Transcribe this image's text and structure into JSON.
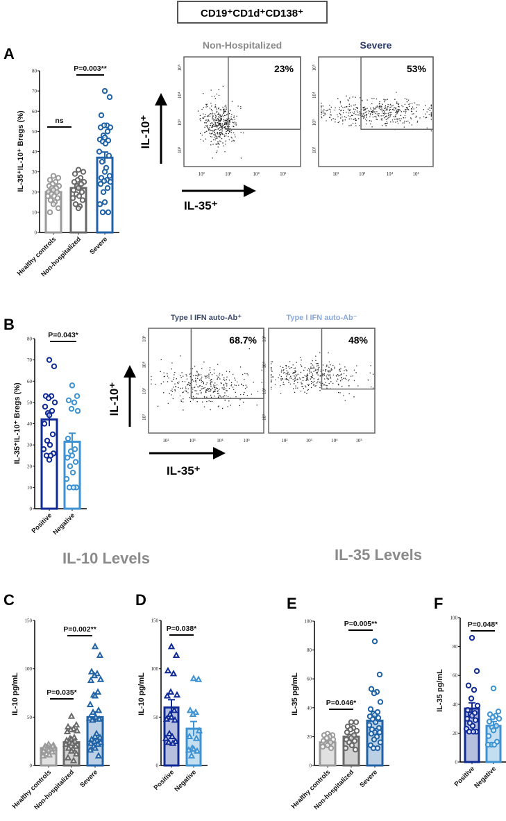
{
  "header": {
    "title_box": "CD19⁺CD1d⁺CD138⁺"
  },
  "section_titles": {
    "il10": "IL-10 Levels",
    "il35": "IL-35 Levels"
  },
  "colors": {
    "healthy": "#9a9a9a",
    "nonhosp": "#686868",
    "severe": "#1f62a6",
    "positive": "#0f2a96",
    "negative": "#3c92d2"
  },
  "chart_data": [
    {
      "panel": "A",
      "type": "bar",
      "ylabel": "IL-35⁺IL-10⁺ Bregs (%)",
      "ylim": [
        0,
        80
      ],
      "yticks": [
        "0",
        "10",
        "20",
        "30",
        "40",
        "50",
        "60",
        "70",
        "80"
      ],
      "marker": "circle",
      "filled_bars": false,
      "categories": [
        "Healthy controls",
        "Non-hospitalized",
        "Severe"
      ],
      "color_keys": [
        "healthy",
        "nonhosp",
        "severe"
      ],
      "means": [
        20,
        22,
        37
      ],
      "sem": [
        1.2,
        1.2,
        2.8
      ],
      "points": [
        [
          28,
          27,
          26,
          25,
          24,
          23,
          23,
          22,
          22,
          21,
          20,
          20,
          19,
          18,
          18,
          17,
          16,
          15,
          14,
          12,
          10
        ],
        [
          31,
          30,
          29,
          27,
          26,
          25,
          25,
          24,
          23,
          22,
          21,
          20,
          19,
          18,
          17,
          16,
          14,
          13,
          12
        ],
        [
          70,
          67,
          58,
          53,
          53,
          52,
          52,
          50,
          48,
          47,
          46,
          45.5,
          45,
          44,
          40,
          38,
          35,
          32,
          30,
          28,
          27,
          26,
          25.5,
          25,
          24,
          22,
          20,
          15,
          14,
          10,
          10
        ]
      ],
      "annotations": [
        {
          "text": "ns",
          "from": 0,
          "to": 1
        },
        {
          "text": "P=0.003**",
          "from": 1,
          "to": 2
        }
      ]
    },
    {
      "panel": "B",
      "type": "bar",
      "ylabel": "IL-35⁺IL-10⁺ Bregs (%)",
      "ylim": [
        0,
        80
      ],
      "yticks": [
        "0",
        "10",
        "20",
        "30",
        "40",
        "50",
        "60",
        "70",
        "80"
      ],
      "marker": "circle",
      "filled_bars": false,
      "categories": [
        "Positive",
        "Negative"
      ],
      "color_keys": [
        "positive",
        "negative"
      ],
      "means": [
        42,
        31.5
      ],
      "sem": [
        3.2,
        4
      ],
      "points": [
        [
          70,
          67,
          53,
          53,
          52,
          50,
          48,
          46,
          45,
          44,
          40,
          35,
          32,
          30,
          28,
          26,
          25,
          25,
          23
        ],
        [
          58,
          53,
          51,
          50,
          47,
          46,
          33,
          28,
          27,
          25,
          24,
          22,
          20,
          17,
          14,
          10,
          10,
          10
        ]
      ],
      "annotations": [
        {
          "text": "P=0.043*",
          "from": 0,
          "to": 1
        }
      ]
    },
    {
      "panel": "C",
      "type": "bar",
      "ylabel": "IL-10 pg/mL",
      "ylim": [
        0,
        150
      ],
      "yticks": [
        "0",
        "50",
        "100",
        "150"
      ],
      "marker": "triangle",
      "filled_bars": true,
      "categories": [
        "Healthy controls",
        "Non-hospitalized",
        "Severe"
      ],
      "color_keys": [
        "healthy",
        "nonhosp",
        "severe"
      ],
      "means": [
        18,
        24,
        50
      ],
      "sem": [
        0.8,
        2.5,
        5.5
      ],
      "points": [
        [
          22,
          21,
          20,
          19,
          19,
          18,
          18,
          17,
          17,
          16,
          15,
          14,
          12,
          11,
          10,
          20
        ],
        [
          51,
          42,
          40,
          38,
          37,
          36,
          35,
          29,
          28,
          27,
          26,
          25,
          24,
          23,
          22,
          20,
          18,
          17,
          15,
          12,
          8,
          5
        ],
        [
          123,
          114,
          97,
          95,
          93,
          89,
          88,
          76,
          73,
          72,
          63,
          57,
          55,
          50,
          49,
          48,
          47,
          33,
          30,
          29,
          27,
          26,
          25,
          24,
          23,
          22,
          20,
          18,
          16,
          10
        ]
      ],
      "annotations": [
        {
          "text": "P=0.035*",
          "from": 0,
          "to": 1
        },
        {
          "text": "P=0.002**",
          "from": 1,
          "to": 2
        }
      ]
    },
    {
      "panel": "D",
      "type": "bar",
      "ylabel": "IL-10 pg/mL",
      "ylim": [
        0,
        150
      ],
      "yticks": [
        "0",
        "50",
        "100",
        "150"
      ],
      "marker": "triangle",
      "filled_bars": true,
      "categories": [
        "Positive",
        "Negative"
      ],
      "color_keys": [
        "positive",
        "negative"
      ],
      "means": [
        60,
        38
      ],
      "sem": [
        8,
        7.5
      ],
      "points": [
        [
          123,
          114,
          98,
          95,
          76,
          73,
          72,
          57,
          53,
          50,
          48,
          47,
          33,
          30,
          28,
          25,
          24,
          23
        ],
        [
          90,
          89,
          57,
          55,
          53,
          36,
          30,
          28,
          18,
          17,
          16,
          15,
          10
        ]
      ],
      "annotations": [
        {
          "text": "P=0.038*",
          "from": 0,
          "to": 1
        }
      ]
    },
    {
      "panel": "E",
      "type": "bar",
      "ylabel": "IL-35 pg/mL",
      "ylim": [
        0,
        100
      ],
      "yticks": [
        "0",
        "20",
        "40",
        "60",
        "80",
        "100"
      ],
      "marker": "circle",
      "filled_bars": true,
      "categories": [
        "Healthy controls",
        "Non-hospitalized",
        "Severe"
      ],
      "color_keys": [
        "healthy",
        "nonhosp",
        "severe"
      ],
      "means": [
        16,
        20,
        31
      ],
      "sem": [
        1,
        1.5,
        3
      ],
      "points": [
        [
          22,
          21,
          21,
          20,
          19,
          18,
          17,
          16,
          15,
          14,
          13,
          12
        ],
        [
          30,
          30,
          27,
          26,
          25,
          24,
          23,
          21,
          20,
          19,
          18,
          17,
          16,
          14,
          12,
          11
        ],
        [
          86,
          63,
          53,
          51,
          50,
          44,
          39,
          37,
          36,
          35,
          34,
          33,
          32,
          30,
          28,
          26,
          25,
          24,
          23,
          23,
          22,
          20,
          18,
          16,
          14,
          12,
          12
        ]
      ],
      "annotations": [
        {
          "text": "P=0.046*",
          "from": 0,
          "to": 1
        },
        {
          "text": "P=0.005**",
          "from": 1,
          "to": 2
        }
      ]
    },
    {
      "panel": "F",
      "type": "bar",
      "ylabel": "IL-35 pg/mL",
      "ylim": [
        0,
        100
      ],
      "yticks": [
        "0",
        "20",
        "40",
        "60",
        "80",
        "100"
      ],
      "marker": "circle",
      "filled_bars": true,
      "categories": [
        "Positive",
        "Negative"
      ],
      "color_keys": [
        "positive",
        "negative"
      ],
      "means": [
        37,
        25
      ],
      "sem": [
        4,
        3
      ],
      "points": [
        [
          86,
          63,
          53,
          50,
          44,
          39,
          36,
          34,
          33,
          32,
          30,
          29,
          27,
          25,
          23,
          21,
          21,
          21
        ],
        [
          51,
          35,
          33,
          32,
          31,
          30,
          28,
          25,
          24,
          22,
          18,
          14,
          12,
          12,
          12
        ]
      ],
      "annotations": [
        {
          "text": "P=0.048*",
          "from": 0,
          "to": 1
        }
      ]
    }
  ],
  "flow_plots": [
    {
      "title": "Non-Hospitalized",
      "title_color": "#8a8a8a",
      "gate_percent": "23%"
    },
    {
      "title": "Severe",
      "title_color": "#2b3a6b",
      "gate_percent": "53%"
    },
    {
      "title": "Type I IFN auto-Ab⁺",
      "title_color": "#3b4a6b",
      "gate_percent": "68.7%"
    },
    {
      "title": "Type I IFN auto-Ab⁻",
      "title_color": "#8aa9dc",
      "gate_percent": "48%"
    }
  ],
  "flow_axes": {
    "xticks": [
      "10²",
      "10³",
      "10⁴",
      "10⁵"
    ],
    "yticks": [
      "10⁵",
      "10⁴",
      "10³",
      "10²"
    ],
    "ylabel": "IL-10⁺",
    "xlabel": "IL-35⁺"
  }
}
